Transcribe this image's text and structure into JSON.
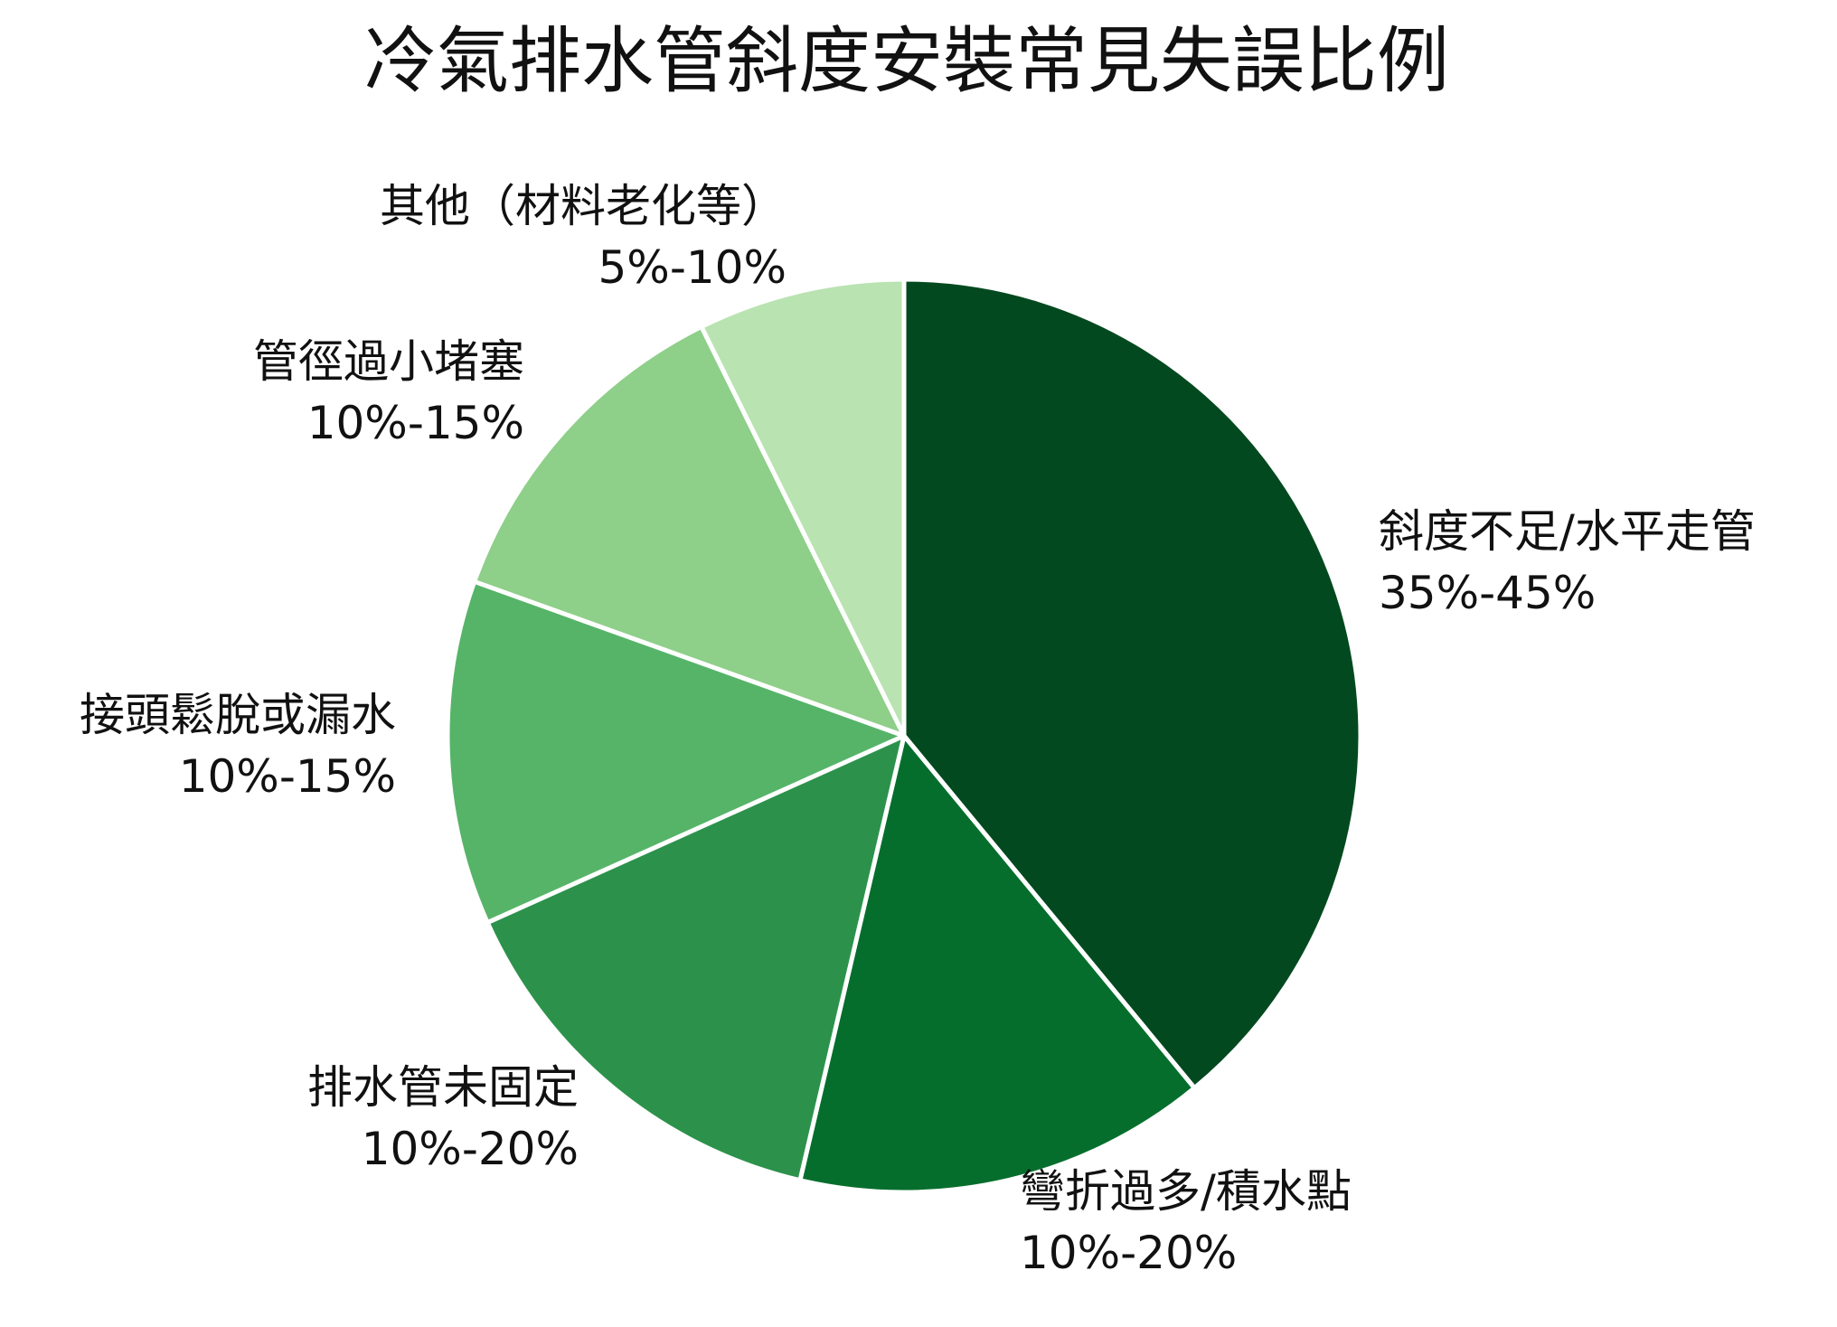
{
  "chart_data": {
    "type": "pie",
    "title": "冷氣排水管斜度安裝常見失誤比例",
    "slices": [
      {
        "label": "斜度不足/水平走管",
        "range_text": "35%-45%",
        "value": 40,
        "color": "#03491f"
      },
      {
        "label": "彎折過多/積水點",
        "range_text": "10%-20%",
        "value": 15,
        "color": "#066e2d"
      },
      {
        "label": "排水管未固定",
        "range_text": "10%-20%",
        "value": 15,
        "color": "#2c924b"
      },
      {
        "label": "接頭鬆脫或漏水",
        "range_text": "10%-15%",
        "value": 12.5,
        "color": "#56b468"
      },
      {
        "label": "管徑過小堵塞",
        "range_text": "10%-15%",
        "value": 12.5,
        "color": "#8ecf89"
      },
      {
        "label": "其他（材料老化等）",
        "range_text": "5%-10%",
        "value": 7.5,
        "color": "#b9e3b1"
      }
    ],
    "start_angle": "12 o'clock",
    "direction": "clockwise",
    "slice_border_color": "#ffffff",
    "legend": "none"
  }
}
